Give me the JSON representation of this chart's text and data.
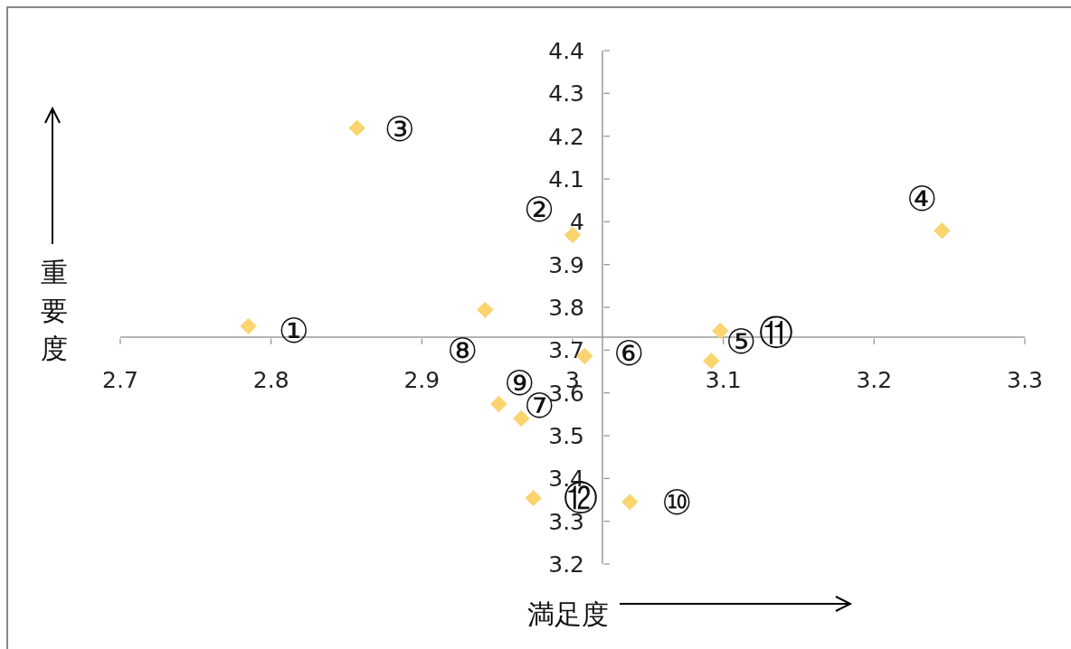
{
  "chart_data": {
    "type": "scatter",
    "xlabel": "満足度",
    "ylabel": "重要度",
    "x": [
      2.785,
      3.0,
      2.857,
      3.245,
      3.098,
      3.008,
      2.966,
      2.942,
      2.951,
      3.038,
      3.092,
      2.974
    ],
    "values": [
      3.756,
      3.969,
      4.219,
      3.979,
      3.745,
      3.686,
      3.54,
      3.794,
      3.574,
      3.345,
      3.675,
      3.354
    ],
    "value_labels": [
      "①",
      "②",
      "③",
      "④",
      "⑤",
      "⑥",
      "⑦",
      "⑧",
      "⑨",
      "⑩",
      "⑪",
      "⑫"
    ],
    "color": "#fad46e",
    "marker": "diamond",
    "xlim": [
      2.7,
      3.3
    ],
    "ylim": [
      3.2,
      4.4
    ],
    "xticks": [
      2.7,
      2.8,
      2.9,
      3,
      3.1,
      3.2,
      3.3
    ],
    "yticks": [
      3.2,
      3.3,
      3.4,
      3.5,
      3.6,
      3.7,
      3.8,
      3.9,
      4,
      4.1,
      4.2,
      4.3,
      4.4
    ]
  }
}
